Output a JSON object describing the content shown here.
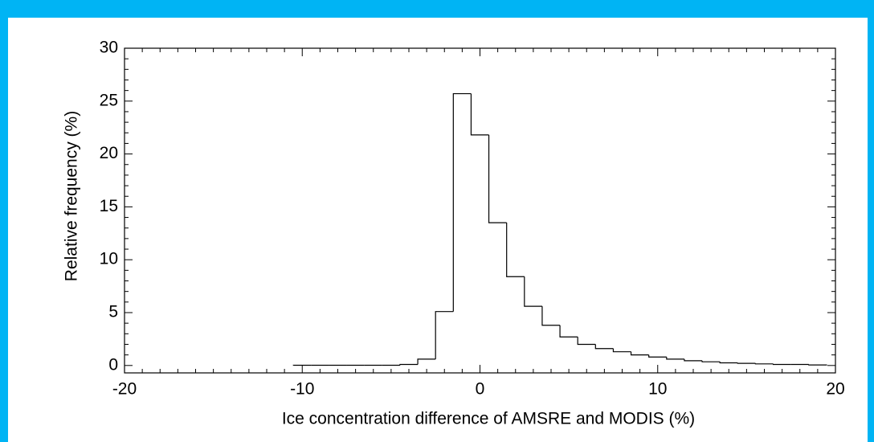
{
  "chart_data": {
    "type": "histogram",
    "xlabel": "Ice concentration difference of AMSRE and MODIS (%)",
    "ylabel": "Relative frequency (%)",
    "bins": [
      -10.5,
      -9.5,
      -8.5,
      -7.5,
      -6.5,
      -5.5,
      -4.5,
      -3.5,
      -2.5,
      -1.5,
      -0.5,
      0.5,
      1.5,
      2.5,
      3.5,
      4.5,
      5.5,
      6.5,
      7.5,
      8.5,
      9.5,
      10.5,
      11.5,
      12.5,
      13.5,
      14.5,
      15.5,
      16.5,
      17.5,
      18.5,
      19.5
    ],
    "values": [
      0.02,
      0.02,
      0.02,
      0.02,
      0.02,
      0.02,
      0.1,
      0.6,
      5.1,
      25.7,
      21.8,
      13.5,
      8.4,
      5.6,
      3.8,
      2.7,
      2.0,
      1.6,
      1.3,
      1.0,
      0.8,
      0.6,
      0.45,
      0.35,
      0.25,
      0.2,
      0.15,
      0.1,
      0.1,
      0.05
    ],
    "color": "#000000",
    "xlim": [
      -20,
      20
    ],
    "xticks": [
      -20,
      -10,
      0,
      10,
      20
    ],
    "ylim": [
      -0.7,
      30
    ],
    "yticks": [
      0,
      5,
      10,
      15,
      20,
      25,
      30
    ]
  }
}
